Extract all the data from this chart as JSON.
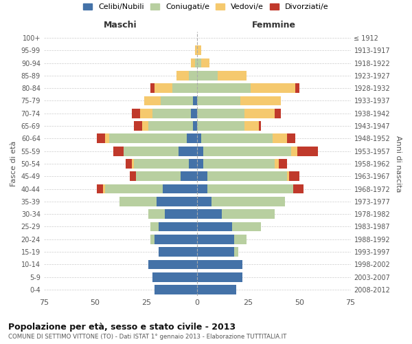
{
  "age_groups": [
    "100+",
    "95-99",
    "90-94",
    "85-89",
    "80-84",
    "75-79",
    "70-74",
    "65-69",
    "60-64",
    "55-59",
    "50-54",
    "45-49",
    "40-44",
    "35-39",
    "30-34",
    "25-29",
    "20-24",
    "15-19",
    "10-14",
    "5-9",
    "0-4"
  ],
  "birth_years": [
    "≤ 1912",
    "1913-1917",
    "1918-1922",
    "1923-1927",
    "1928-1932",
    "1933-1937",
    "1938-1942",
    "1943-1947",
    "1948-1952",
    "1953-1957",
    "1958-1962",
    "1963-1967",
    "1968-1972",
    "1973-1977",
    "1978-1982",
    "1983-1987",
    "1988-1992",
    "1993-1997",
    "1998-2002",
    "2003-2007",
    "2008-2012"
  ],
  "colors": {
    "celibe": "#4472a8",
    "coniugato": "#b8cfa0",
    "vedovo": "#f5c96e",
    "divorziato": "#c0392b"
  },
  "males": {
    "celibe": [
      0,
      0,
      0,
      0,
      0,
      2,
      3,
      2,
      5,
      9,
      4,
      8,
      17,
      20,
      16,
      19,
      21,
      19,
      24,
      22,
      21
    ],
    "coniugato": [
      0,
      0,
      1,
      4,
      12,
      16,
      19,
      22,
      38,
      27,
      27,
      22,
      28,
      18,
      8,
      4,
      2,
      0,
      0,
      0,
      0
    ],
    "vedovo": [
      0,
      1,
      2,
      6,
      9,
      8,
      6,
      3,
      2,
      0,
      1,
      0,
      1,
      0,
      0,
      0,
      0,
      0,
      0,
      0,
      0
    ],
    "divorziato": [
      0,
      0,
      0,
      0,
      2,
      0,
      4,
      4,
      4,
      5,
      3,
      3,
      3,
      0,
      0,
      0,
      0,
      0,
      0,
      0,
      0
    ]
  },
  "females": {
    "nubile": [
      0,
      0,
      0,
      0,
      0,
      0,
      0,
      0,
      2,
      3,
      3,
      5,
      5,
      7,
      12,
      17,
      18,
      18,
      22,
      22,
      19
    ],
    "coniugata": [
      0,
      0,
      2,
      10,
      26,
      21,
      23,
      23,
      35,
      43,
      35,
      39,
      42,
      36,
      26,
      14,
      6,
      2,
      0,
      0,
      0
    ],
    "vedova": [
      0,
      2,
      4,
      14,
      22,
      20,
      15,
      7,
      7,
      3,
      2,
      1,
      0,
      0,
      0,
      0,
      0,
      0,
      0,
      0,
      0
    ],
    "divorziata": [
      0,
      0,
      0,
      0,
      2,
      0,
      3,
      1,
      4,
      10,
      4,
      5,
      5,
      0,
      0,
      0,
      0,
      0,
      0,
      0,
      0
    ]
  },
  "xlim": 75,
  "title1": "Popolazione per età, sesso e stato civile - 2013",
  "title2": "COMUNE DI SETTIMO VITTONE (TO) - Dati ISTAT 1° gennaio 2013 - Elaborazione TUTTITALIA.IT",
  "ylabel_left": "Fasce di età",
  "ylabel_right": "Anni di nascita",
  "xlabel_left": "Maschi",
  "xlabel_right": "Femmine",
  "legend_labels": [
    "Celibi/Nubili",
    "Coniugati/e",
    "Vedovi/e",
    "Divorziati/e"
  ],
  "bg_color": "#ffffff",
  "grid_color": "#cccccc"
}
